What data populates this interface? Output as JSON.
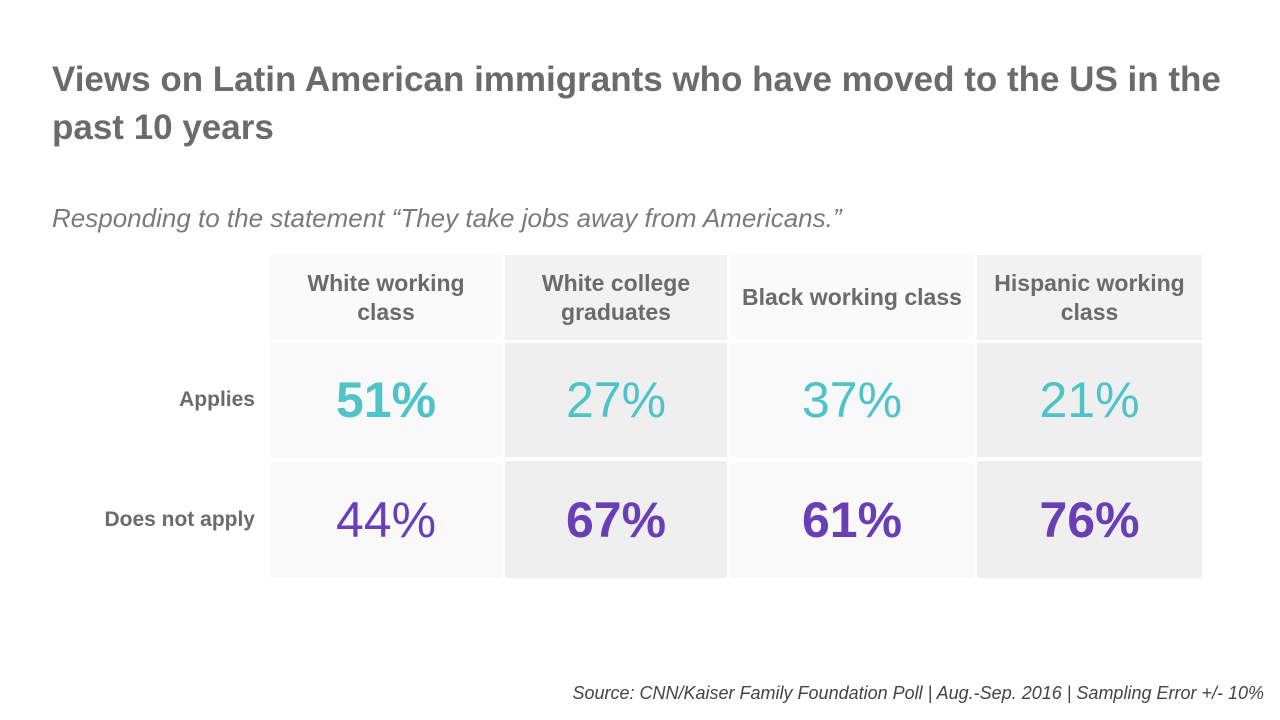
{
  "title": "Views on Latin American immigrants who have moved to the US in the past 10 years",
  "subtitle": "Responding to the statement “They take jobs away from Americans.”",
  "table": {
    "columns": [
      "White working class",
      "White college graduates",
      "Black working class",
      "Hispanic working class"
    ],
    "rows": [
      {
        "label": "Applies",
        "color": "#4ec3c9",
        "cells": [
          "51%",
          "27%",
          "37%",
          "21%"
        ],
        "bold": [
          true,
          false,
          false,
          false
        ]
      },
      {
        "label": "Does not apply",
        "color": "#6a3fb5",
        "cells": [
          "44%",
          "67%",
          "61%",
          "76%"
        ],
        "bold": [
          false,
          true,
          true,
          true
        ]
      }
    ]
  },
  "source": "Source: CNN/Kaiser Family Foundation Poll | Aug.-Sep. 2016 | Sampling Error +/- 10%"
}
